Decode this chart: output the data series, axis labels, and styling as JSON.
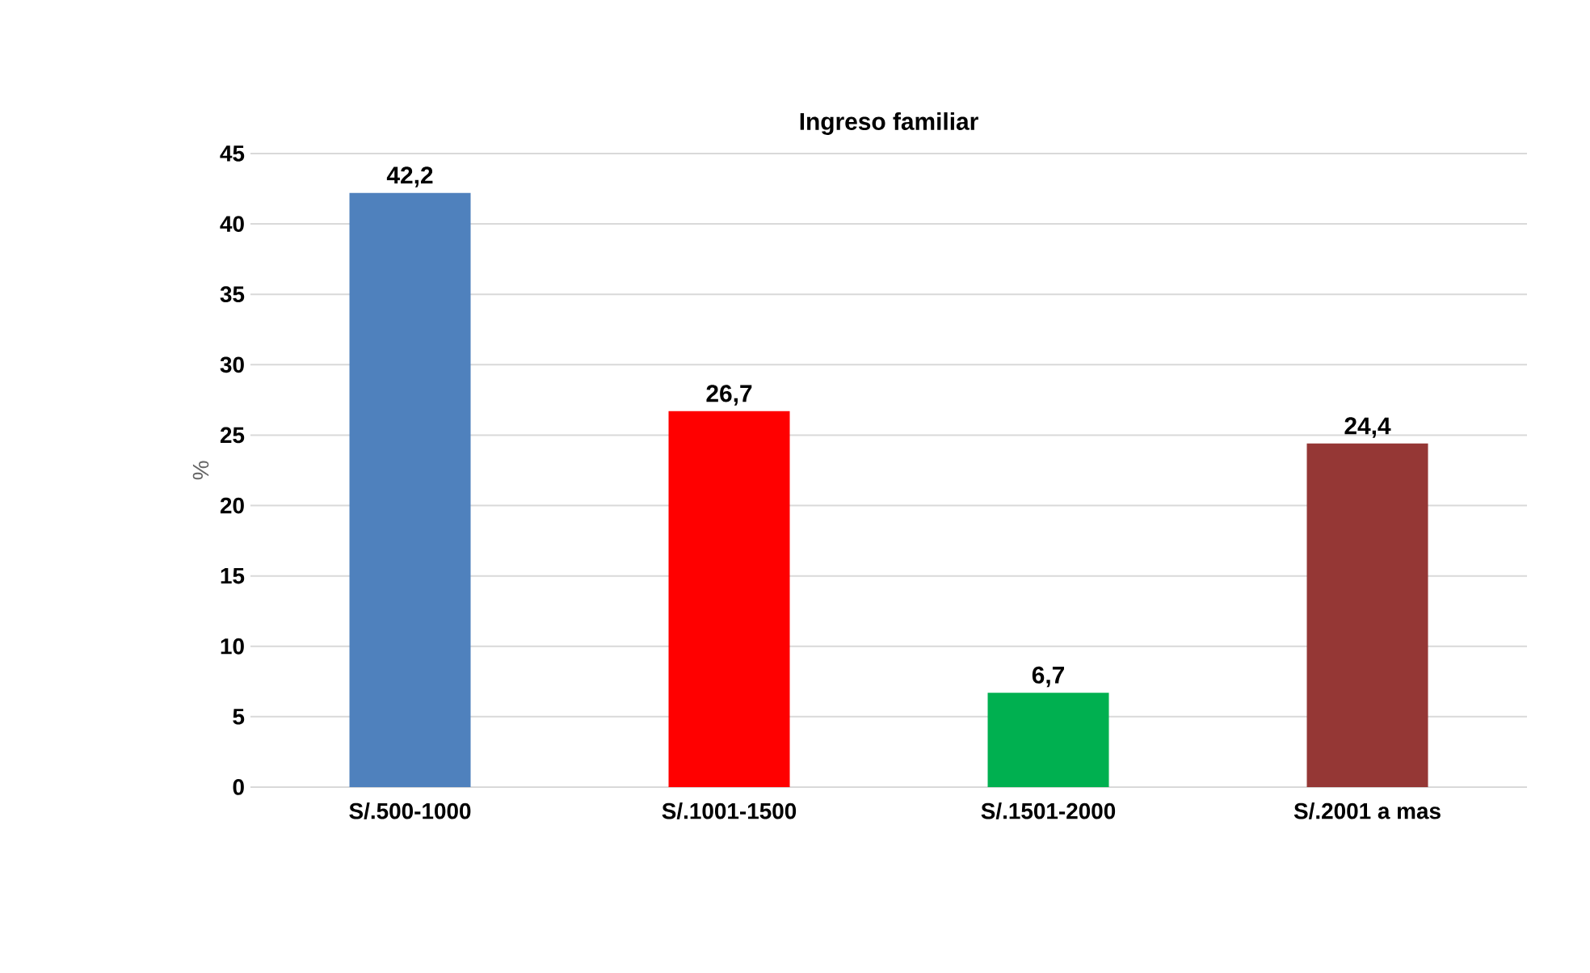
{
  "chart_data": {
    "type": "bar",
    "title": "Ingreso familiar",
    "ylabel": "%",
    "categories": [
      "S/.500-1000",
      "S/.1001-1500",
      "S/.1501-2000",
      "S/.2001 a mas"
    ],
    "values": [
      42.2,
      26.7,
      6.7,
      24.4
    ],
    "colors": [
      "#4f81bd",
      "#ff0000",
      "#00b050",
      "#953735"
    ],
    "value_labels": [
      "42,2",
      "26,7",
      "6,7",
      "24,4"
    ],
    "ylim": [
      0,
      45
    ],
    "yticks": [
      0,
      5,
      10,
      15,
      20,
      25,
      30,
      35,
      40,
      45
    ],
    "grid": "y"
  }
}
